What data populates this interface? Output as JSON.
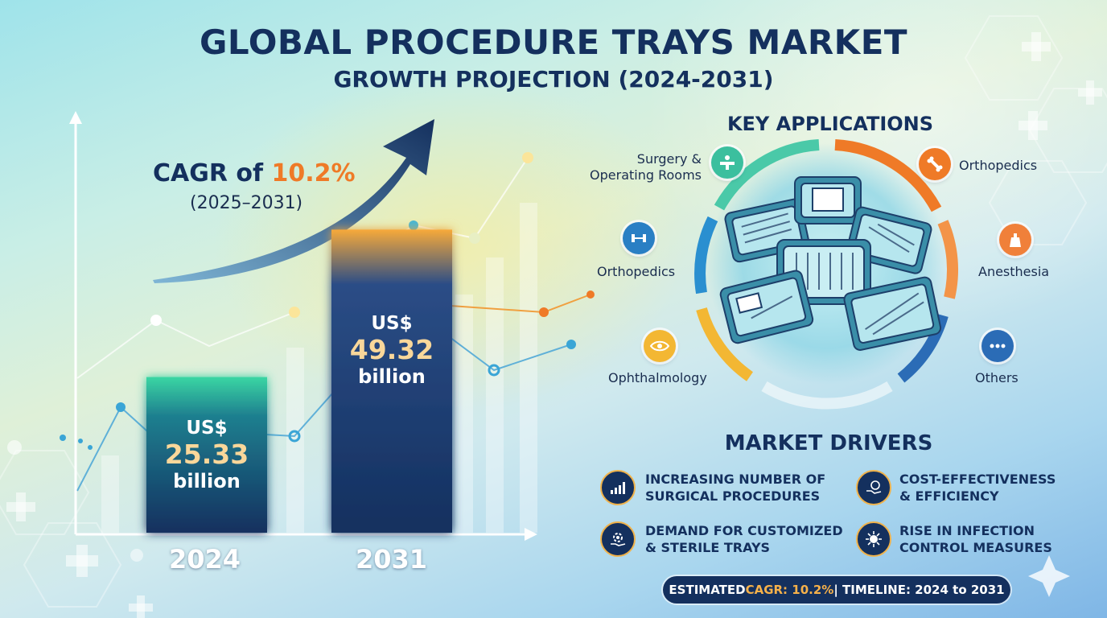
{
  "header": {
    "title": "GLOBAL PROCEDURE TRAYS MARKET",
    "subtitle": "GROWTH PROJECTION (2024-2031)"
  },
  "cagr": {
    "prefix": "CAGR of",
    "value": "10.2%",
    "period": "(2025–2031)"
  },
  "chart_data": {
    "type": "bar",
    "categories": [
      "2024",
      "2031"
    ],
    "values": [
      25.33,
      49.32
    ],
    "unit": "US$ billion",
    "labels": [
      {
        "currency": "US$",
        "value": "25.33",
        "unit": "billion"
      },
      {
        "currency": "US$",
        "value": "49.32",
        "unit": "billion"
      }
    ],
    "title": "",
    "xlabel": "",
    "ylabel": "",
    "ylim": [
      0,
      55
    ]
  },
  "applications": {
    "heading": "KEY APPLICATIONS",
    "items": [
      {
        "label": "Surgery & Operating Rooms",
        "icon": "operating-table-icon",
        "color": "#3bbf9e"
      },
      {
        "label": "Orthopedics",
        "icon": "bone-icon",
        "color": "#ef7a27"
      },
      {
        "label": "Orthopedics",
        "icon": "dumbbell-icon",
        "color": "#2a7fc4"
      },
      {
        "label": "Anesthesia",
        "icon": "anesthesia-bag-icon",
        "color": "#f0803a"
      },
      {
        "label": "Ophthalmology",
        "icon": "eye-icon",
        "color": "#f3b733"
      },
      {
        "label": "Others",
        "icon": "more-icon",
        "color": "#2b6cb6"
      }
    ]
  },
  "drivers": {
    "heading": "MARKET DRIVERS",
    "items": [
      {
        "text": "Increasing number of surgical procedures",
        "icon": "growth-chart-icon"
      },
      {
        "text": "Cost-effectiveness & efficiency",
        "icon": "money-hand-icon"
      },
      {
        "text": "Demand for customized & sterile trays",
        "icon": "gear-hand-icon"
      },
      {
        "text": "Rise in infection control measures",
        "icon": "virus-icon"
      }
    ]
  },
  "footer": {
    "prefix": "ESTIMATED ",
    "cagr": "CAGR: 10.2%",
    "suffix": " | TIMELINE: 2024 to 2031"
  },
  "colors": {
    "navy": "#14305e",
    "accent_orange": "#ef7a27",
    "bar_top_2024": "#3ad6a3",
    "bar_top_2031": "#f7a93a"
  }
}
